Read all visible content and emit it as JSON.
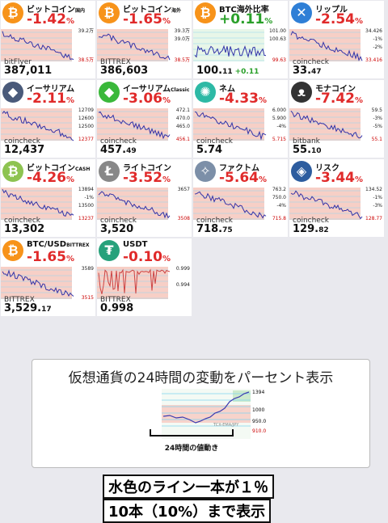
{
  "cards": [
    {
      "icon": "bitcoin-icon",
      "glyph": "₿",
      "color": "#f7931a",
      "name": "ビットコイン",
      "tag": "国内",
      "pct": "-1.42",
      "sign": "neg",
      "exchange": "bitFlyer",
      "price": "387,011",
      "sub": "",
      "delta": "",
      "labels": [
        "39.2万",
        "",
        "",
        "38.5万"
      ],
      "trend": "down"
    },
    {
      "icon": "bitcoin-icon",
      "glyph": "₿",
      "color": "#f7931a",
      "name": "ビットコイン",
      "tag": "海外",
      "pct": "-1.65",
      "sign": "neg",
      "exchange": "BITTREX",
      "price": "386,603",
      "sub": "",
      "delta": "",
      "labels": [
        "39.3万",
        "39.0万",
        "",
        "38.5万"
      ],
      "trend": "down"
    },
    {
      "icon": "bitcoin-icon",
      "glyph": "₿",
      "color": "#f7931a",
      "name": "BTC海外比率",
      "tag": "",
      "pct": "+0.11",
      "sign": "pos",
      "exchange": "",
      "price": "100.",
      "sub": "11",
      "delta": "+0.11",
      "labels": [
        "101.00",
        "100.63",
        "",
        "99.63"
      ],
      "trend": "flat"
    },
    {
      "icon": "ripple-icon",
      "glyph": "✕",
      "color": "#2f7fd6",
      "name": "リップル",
      "tag": "",
      "pct": "-2.54",
      "sign": "neg",
      "exchange": "coincheck",
      "price": "33.",
      "sub": "47",
      "delta": "",
      "labels": [
        "34.426",
        "-1%",
        "-2%",
        "33.416"
      ],
      "trend": "down"
    },
    {
      "icon": "ethereum-icon",
      "glyph": "◆",
      "color": "#4a5a7a",
      "name": "イーサリアム",
      "tag": "",
      "pct": "-2.11",
      "sign": "neg",
      "exchange": "coincheck",
      "price": "12,437",
      "sub": "",
      "delta": "",
      "labels": [
        "12709",
        "12600",
        "12500",
        "12377"
      ],
      "trend": "down"
    },
    {
      "icon": "ethereum-classic-icon",
      "glyph": "◆",
      "color": "#3ab83a",
      "name": "イーサリアム",
      "tag": "Classic",
      "pct": "-3.06",
      "sign": "neg",
      "exchange": "coincheck",
      "price": "457.",
      "sub": "49",
      "delta": "",
      "labels": [
        "472.1",
        "470.0",
        "465.0",
        "456.1"
      ],
      "trend": "down"
    },
    {
      "icon": "nem-icon",
      "glyph": "✺",
      "color": "#2db9a5",
      "name": "ネム",
      "tag": "",
      "pct": "-4.33",
      "sign": "neg",
      "exchange": "coincheck",
      "price": "5.74",
      "sub": "",
      "delta": "",
      "labels": [
        "6.000",
        "5.900",
        "-4%",
        "5.715"
      ],
      "trend": "down"
    },
    {
      "icon": "monacoin-icon",
      "glyph": "ᴥ",
      "color": "#333333",
      "name": "モナコイン",
      "tag": "",
      "pct": "-7.42",
      "sign": "neg",
      "exchange": "bitbank",
      "price": "55.",
      "sub": "10",
      "delta": "",
      "labels": [
        "59.5",
        "-3%",
        "-5%",
        "55.1"
      ],
      "trend": "down"
    },
    {
      "icon": "bitcoin-cash-icon",
      "glyph": "₿",
      "color": "#8dc351",
      "name": "ビットコイン",
      "tag": "CASH",
      "pct": "-4.26",
      "sign": "neg",
      "exchange": "coincheck",
      "price": "13,302",
      "sub": "",
      "delta": "",
      "labels": [
        "13894",
        "-1%",
        "13500",
        "13237"
      ],
      "trend": "down"
    },
    {
      "icon": "litecoin-icon",
      "glyph": "Ł",
      "color": "#888888",
      "name": "ライトコイン",
      "tag": "",
      "pct": "-3.52",
      "sign": "neg",
      "exchange": "coincheck",
      "price": "3,520",
      "sub": "",
      "delta": "",
      "labels": [
        "3657",
        "",
        "",
        "3508"
      ],
      "trend": "down"
    },
    {
      "icon": "factom-icon",
      "glyph": "✧",
      "color": "#7c8fa8",
      "name": "ファクトム",
      "tag": "",
      "pct": "-5.64",
      "sign": "neg",
      "exchange": "coincheck",
      "price": "718.",
      "sub": "75",
      "delta": "",
      "labels": [
        "763.2",
        "750.0",
        "-4%",
        "715.8"
      ],
      "trend": "down"
    },
    {
      "icon": "lisk-icon",
      "glyph": "◈",
      "color": "#2d5d9f",
      "name": "リスク",
      "tag": "",
      "pct": "-3.44",
      "sign": "neg",
      "exchange": "coincheck",
      "price": "129.",
      "sub": "82",
      "delta": "",
      "labels": [
        "134.52",
        "-1%",
        "-3%",
        "128.77"
      ],
      "trend": "down"
    },
    {
      "icon": "bitcoin-icon",
      "glyph": "₿",
      "color": "#f7931a",
      "name": "BTC/USD",
      "tag": "BITTREX",
      "pct": "-1.65",
      "sign": "neg",
      "exchange": "BITTREX",
      "price": "3,529.",
      "sub": "17",
      "delta": "",
      "labels": [
        "3589",
        "",
        "",
        "3515"
      ],
      "trend": "down"
    },
    {
      "icon": "tether-icon",
      "glyph": "₮",
      "color": "#26a17b",
      "name": "USDT",
      "tag": "",
      "pct": "-0.10",
      "sign": "neg",
      "exchange": "BITTREX",
      "price": "0.998",
      "sub": "",
      "delta": "",
      "labels": [
        "0.999",
        "",
        "0.994",
        ""
      ],
      "trend": "spiky"
    }
  ],
  "promo": {
    "title": "仮想通貨の24時間の変動をパーセント表示",
    "caption": "24時間の値動き",
    "chart_labels": [
      "1394",
      "1000",
      "950.0",
      "910.0",
      "TCX-EMA/JPY"
    ]
  },
  "notes": {
    "line1": "水色のライン一本が１％",
    "line2": "10本（10%）まで表示"
  }
}
